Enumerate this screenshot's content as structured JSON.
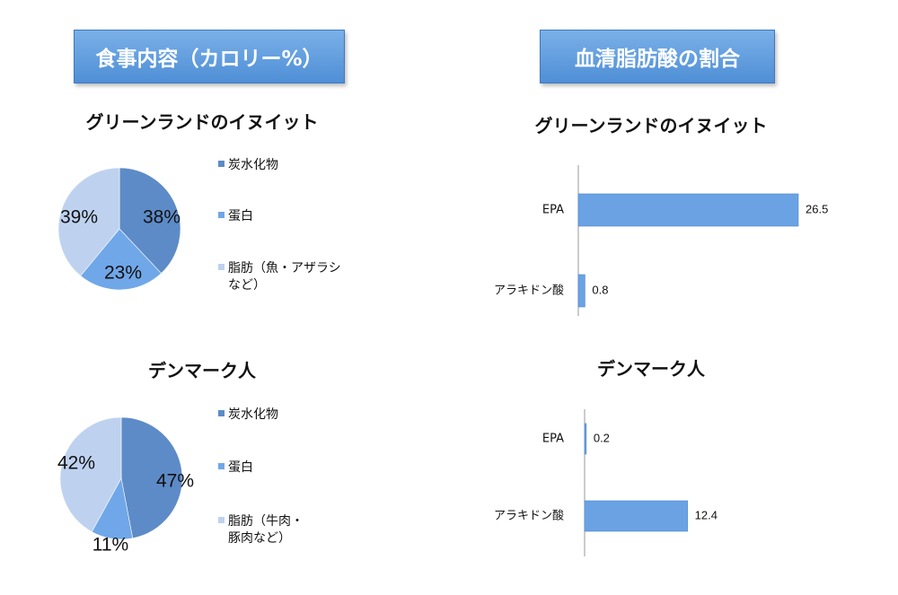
{
  "left_header": "食事内容（カロリー%）",
  "right_header": "血清脂肪酸の割合",
  "colors": {
    "carb": "#5d8bc8",
    "protein": "#70a7e8",
    "fat": "#bed2f0",
    "bar": "#6aa2e4",
    "header": "#5b9be0"
  },
  "chart_data": [
    {
      "type": "pie",
      "title": "グリーンランドのイヌイット",
      "categories": [
        "炭水化物",
        "蛋白",
        "脂肪（魚・アザラシなど）"
      ],
      "legend_lines": [
        [
          "炭水化物"
        ],
        [
          "蛋白"
        ],
        [
          "脂肪（魚・アザラシ",
          "など）"
        ]
      ],
      "values": [
        38,
        23,
        39
      ],
      "value_labels": [
        "38%",
        "23%",
        "39%"
      ],
      "legend": "right"
    },
    {
      "type": "pie",
      "title": "デンマーク人",
      "categories": [
        "炭水化物",
        "蛋白",
        "脂肪（牛肉・豚肉など）"
      ],
      "legend_lines": [
        [
          "炭水化物"
        ],
        [
          "蛋白"
        ],
        [
          "脂肪（牛肉・",
          "豚肉など）"
        ]
      ],
      "values": [
        47,
        11,
        42
      ],
      "value_labels": [
        "47%",
        "11%",
        "42%"
      ],
      "legend": "right"
    },
    {
      "type": "bar",
      "orientation": "horizontal",
      "title": "グリーンランドのイヌイット",
      "categories": [
        "EPA",
        "アラキドン酸"
      ],
      "values": [
        26.5,
        0.8
      ],
      "value_labels": [
        "26.5",
        "0.8"
      ],
      "xlim": [
        0,
        30
      ],
      "grid": false
    },
    {
      "type": "bar",
      "orientation": "horizontal",
      "title": "デンマーク人",
      "categories": [
        "EPA",
        "アラキドン酸"
      ],
      "values": [
        0.2,
        12.4
      ],
      "value_labels": [
        "0.2",
        "12.4"
      ],
      "xlim": [
        0,
        30
      ],
      "grid": false
    }
  ]
}
